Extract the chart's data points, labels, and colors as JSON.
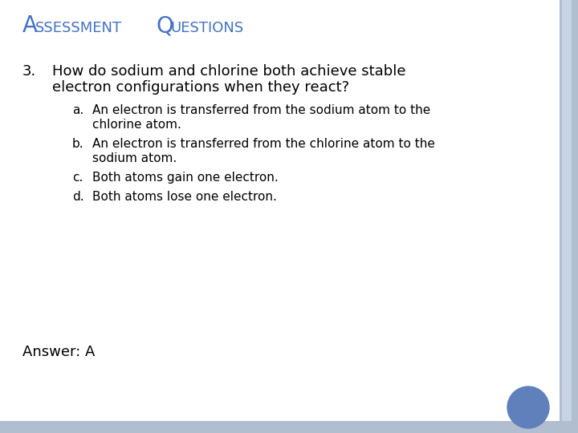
{
  "title_color": "#4472C4",
  "bg_color": "#FFFFFF",
  "border_color": "#B0BED0",
  "question_number": "3.",
  "question_text_line1": "How do sodium and chlorine both achieve stable",
  "question_text_line2": "electron configurations when they react?",
  "options": [
    {
      "label": "a.",
      "text_line1": "An electron is transferred from the sodium atom to the",
      "text_line2": "chlorine atom."
    },
    {
      "label": "b.",
      "text_line1": "An electron is transferred from the chlorine atom to the",
      "text_line2": "sodium atom."
    },
    {
      "label": "c.",
      "text_line1": "Both atoms gain one electron.",
      "text_line2": null
    },
    {
      "label": "d.",
      "text_line1": "Both atoms lose one electron.",
      "text_line2": null
    }
  ],
  "answer_text": "Answer: A",
  "circle_color": "#6080BB",
  "text_color": "#000000",
  "title_large_size": 20,
  "title_small_size": 13,
  "question_fontsize": 13,
  "option_fontsize": 11,
  "answer_fontsize": 13
}
